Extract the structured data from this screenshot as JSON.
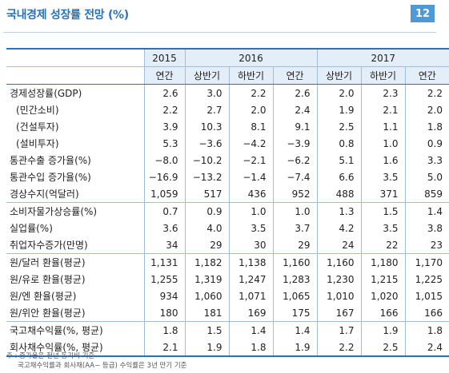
{
  "title": "국내경제 성장률 전망 (%)",
  "page_number": "12",
  "header": {
    "years": [
      "2015",
      "2016",
      "2017"
    ],
    "sub": [
      "연간",
      "상반기",
      "하반기",
      "연간",
      "상반기",
      "하반기",
      "연간"
    ]
  },
  "rows": [
    {
      "label": "경제성장률(GDP)",
      "indent": false,
      "values": [
        "2.6",
        "3.0",
        "2.2",
        "2.6",
        "2.0",
        "2.3",
        "2.2"
      ]
    },
    {
      "label": "(민간소비)",
      "indent": true,
      "values": [
        "2.2",
        "2.7",
        "2.0",
        "2.4",
        "1.9",
        "2.1",
        "2.0"
      ]
    },
    {
      "label": "(건설투자)",
      "indent": true,
      "values": [
        "3.9",
        "10.3",
        "8.1",
        "9.1",
        "2.5",
        "1.1",
        "1.8"
      ]
    },
    {
      "label": "(설비투자)",
      "indent": true,
      "values": [
        "5.3",
        "−3.6",
        "−4.2",
        "−3.9",
        "0.8",
        "1.0",
        "0.9"
      ]
    },
    {
      "label": "통관수출 증가율(%)",
      "indent": false,
      "values": [
        "−8.0",
        "−10.2",
        "−2.1",
        "−6.2",
        "5.1",
        "1.6",
        "3.3"
      ]
    },
    {
      "label": "통관수입 증가율(%)",
      "indent": false,
      "values": [
        "−16.9",
        "−13.2",
        "−1.4",
        "−7.4",
        "6.6",
        "3.5",
        "5.0"
      ]
    },
    {
      "label": "경상수지(억달러)",
      "indent": false,
      "values": [
        "1,059",
        "517",
        "436",
        "952",
        "488",
        "371",
        "859"
      ]
    },
    {
      "label": "소비자물가상승률(%)",
      "indent": false,
      "values": [
        "0.7",
        "0.9",
        "1.0",
        "1.0",
        "1.3",
        "1.5",
        "1.4"
      ]
    },
    {
      "label": "실업률(%)",
      "indent": false,
      "values": [
        "3.6",
        "4.0",
        "3.5",
        "3.7",
        "4.2",
        "3.5",
        "3.8"
      ]
    },
    {
      "label": "취업자수증가(만명)",
      "indent": false,
      "values": [
        "34",
        "29",
        "30",
        "29",
        "24",
        "22",
        "23"
      ]
    },
    {
      "label": "원/달러 환율(평균)",
      "indent": false,
      "values": [
        "1,131",
        "1,182",
        "1,138",
        "1,160",
        "1,160",
        "1,180",
        "1,170"
      ]
    },
    {
      "label": "원/유로 환율(평균)",
      "indent": false,
      "values": [
        "1,255",
        "1,319",
        "1,247",
        "1,283",
        "1,230",
        "1,215",
        "1,225"
      ]
    },
    {
      "label": "원/엔 환율(평균)",
      "indent": false,
      "values": [
        "934",
        "1,060",
        "1,071",
        "1,065",
        "1,010",
        "1,020",
        "1,015"
      ]
    },
    {
      "label": "원/위안 환율(평균)",
      "indent": false,
      "values": [
        "180",
        "181",
        "169",
        "175",
        "167",
        "166",
        "166"
      ]
    },
    {
      "label": "국고채수익률(%, 평균)",
      "indent": false,
      "values": [
        "1.8",
        "1.5",
        "1.4",
        "1.4",
        "1.7",
        "1.9",
        "1.8"
      ]
    },
    {
      "label": "회사채수익률(%, 평균)",
      "indent": false,
      "values": [
        "2.1",
        "1.9",
        "1.8",
        "1.9",
        "2.2",
        "2.5",
        "2.4"
      ]
    }
  ],
  "footnotes": [
    "주 : 증가율은 전년 동기비 기준",
    "국고채수익률과 회사채(AA− 등급) 수익률은 3년 만기 기준"
  ]
}
